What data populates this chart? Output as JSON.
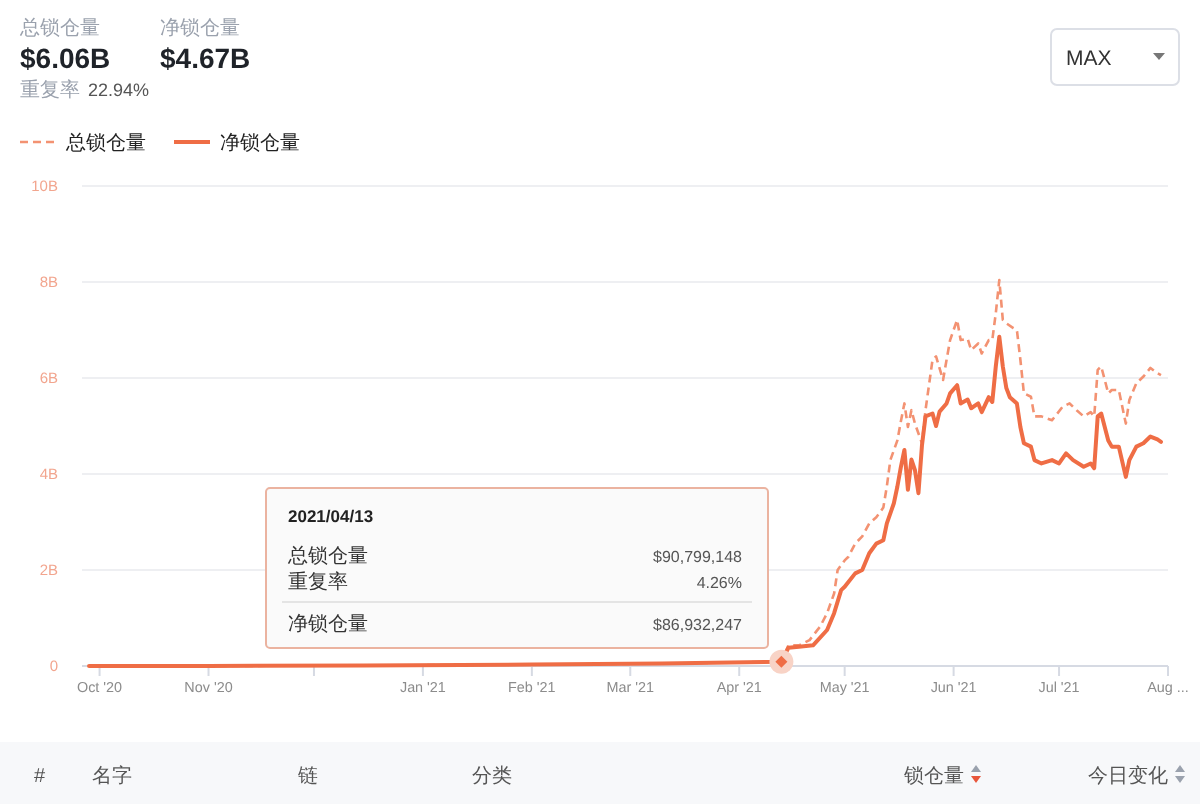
{
  "chart_data": {
    "type": "line",
    "series": [
      {
        "name": "总锁仓量",
        "color": "#f39272",
        "line_style": "dashed",
        "x": [
          "2020-09-28",
          "2020-11-01",
          "2020-12-15",
          "2021-02-01",
          "2021-03-10",
          "2021-04-13",
          "2021-04-15",
          "2021-04-18",
          "2021-04-21",
          "2021-04-24",
          "2021-04-26",
          "2021-04-28",
          "2021-04-29",
          "2021-05-01",
          "2021-05-02",
          "2021-05-04",
          "2021-05-06",
          "2021-05-08",
          "2021-05-10",
          "2021-05-12",
          "2021-05-13",
          "2021-05-14",
          "2021-05-16",
          "2021-05-17",
          "2021-05-18",
          "2021-05-19",
          "2021-05-20",
          "2021-05-21",
          "2021-05-23",
          "2021-05-24",
          "2021-05-26",
          "2021-05-27",
          "2021-05-29",
          "2021-05-30",
          "2021-05-31",
          "2021-06-02",
          "2021-06-03",
          "2021-06-05",
          "2021-06-06",
          "2021-06-08",
          "2021-06-09",
          "2021-06-11",
          "2021-06-12",
          "2021-06-13",
          "2021-06-14",
          "2021-06-15",
          "2021-06-16",
          "2021-06-18",
          "2021-06-19",
          "2021-06-20",
          "2021-06-21",
          "2021-06-23",
          "2021-06-24",
          "2021-06-26",
          "2021-06-29",
          "2021-07-02",
          "2021-07-04",
          "2021-07-06",
          "2021-07-08",
          "2021-07-10",
          "2021-07-11",
          "2021-07-12",
          "2021-07-13",
          "2021-07-15",
          "2021-07-16",
          "2021-07-18",
          "2021-07-20",
          "2021-07-21",
          "2021-07-23",
          "2021-07-25",
          "2021-07-27",
          "2021-07-29",
          "2021-07-30"
        ],
        "values": [
          0,
          0,
          0.01,
          0.03,
          0.05,
          0.09,
          0.43,
          0.43,
          0.54,
          0.82,
          1.1,
          1.51,
          2.0,
          2.2,
          2.27,
          2.55,
          2.7,
          2.97,
          3.1,
          3.3,
          3.74,
          4.29,
          4.7,
          5.1,
          5.47,
          4.98,
          5.33,
          5.05,
          4.64,
          5.33,
          6.38,
          6.45,
          5.96,
          6.38,
          6.79,
          7.21,
          6.79,
          6.82,
          6.58,
          6.72,
          6.51,
          6.79,
          6.79,
          7.35,
          8.04,
          7.21,
          7.14,
          7.04,
          7.0,
          6.38,
          5.68,
          5.61,
          5.2,
          5.2,
          5.12,
          5.4,
          5.47,
          5.33,
          5.2,
          5.29,
          5.2,
          6.17,
          6.24,
          5.68,
          5.75,
          5.75,
          5.05,
          5.54,
          5.89,
          6.03,
          6.21,
          6.1,
          6.06
        ]
      },
      {
        "name": "净锁仓量",
        "color": "#ef6d45",
        "line_style": "solid",
        "x": [
          "2020-09-28",
          "2020-11-01",
          "2020-12-15",
          "2021-02-01",
          "2021-03-10",
          "2021-04-13",
          "2021-04-15",
          "2021-04-18",
          "2021-04-22",
          "2021-04-26",
          "2021-04-28",
          "2021-04-30",
          "2021-05-01",
          "2021-05-04",
          "2021-05-06",
          "2021-05-08",
          "2021-05-10",
          "2021-05-12",
          "2021-05-13",
          "2021-05-15",
          "2021-05-16",
          "2021-05-17",
          "2021-05-18",
          "2021-05-19",
          "2021-05-20",
          "2021-05-21",
          "2021-05-22",
          "2021-05-23",
          "2021-05-24",
          "2021-05-26",
          "2021-05-27",
          "2021-05-28",
          "2021-05-30",
          "2021-05-31",
          "2021-06-02",
          "2021-06-03",
          "2021-06-05",
          "2021-06-06",
          "2021-06-08",
          "2021-06-09",
          "2021-06-11",
          "2021-06-12",
          "2021-06-13",
          "2021-06-14",
          "2021-06-15",
          "2021-06-16",
          "2021-06-17",
          "2021-06-19",
          "2021-06-20",
          "2021-06-21",
          "2021-06-23",
          "2021-06-24",
          "2021-06-26",
          "2021-06-29",
          "2021-07-01",
          "2021-07-03",
          "2021-07-05",
          "2021-07-08",
          "2021-07-10",
          "2021-07-11",
          "2021-07-12",
          "2021-07-13",
          "2021-07-15",
          "2021-07-16",
          "2021-07-18",
          "2021-07-20",
          "2021-07-21",
          "2021-07-23",
          "2021-07-25",
          "2021-07-27",
          "2021-07-29",
          "2021-07-30"
        ],
        "values": [
          0,
          0,
          0.01,
          0.03,
          0.05,
          0.09,
          0.38,
          0.4,
          0.43,
          0.75,
          1.1,
          1.58,
          1.65,
          1.93,
          2.0,
          2.35,
          2.55,
          2.62,
          2.97,
          3.39,
          3.74,
          4.15,
          4.5,
          3.67,
          4.3,
          4.08,
          3.6,
          4.6,
          5.2,
          5.26,
          5.0,
          5.3,
          5.47,
          5.68,
          5.85,
          5.47,
          5.55,
          5.37,
          5.47,
          5.29,
          5.6,
          5.5,
          6.24,
          6.86,
          6.24,
          5.79,
          5.6,
          5.47,
          4.98,
          4.64,
          4.57,
          4.29,
          4.22,
          4.29,
          4.22,
          4.43,
          4.29,
          4.15,
          4.22,
          4.12,
          5.2,
          5.26,
          4.7,
          4.57,
          4.57,
          3.94,
          4.29,
          4.57,
          4.64,
          4.78,
          4.72,
          4.67
        ]
      },
      {
        "type": "scatter",
        "color": "#ef6d45",
        "marker": "diamond",
        "x": [
          "2021-04-13"
        ],
        "values": [
          0.09
        ]
      }
    ],
    "xlim": [
      "2020-09-26",
      "2021-08-01"
    ],
    "xticks": [
      {
        "value": "2020-10-01",
        "label": "Oct '20"
      },
      {
        "value": "2020-11-01",
        "label": "Nov '20"
      },
      {
        "value": "2020-12-01",
        "label": null
      },
      {
        "value": "2021-01-01",
        "label": "Jan '21"
      },
      {
        "value": "2021-02-01",
        "label": "Feb '21"
      },
      {
        "value": "2021-03-01",
        "label": "Mar '21"
      },
      {
        "value": "2021-04-01",
        "label": "Apr '21"
      },
      {
        "value": "2021-05-01",
        "label": "May '21"
      },
      {
        "value": "2021-06-01",
        "label": "Jun '21"
      },
      {
        "value": "2021-07-01",
        "label": "Jul '21"
      },
      {
        "value": "2021-08-01",
        "label": "Aug ..."
      }
    ],
    "ylim": [
      0,
      10
    ],
    "yticks": [
      0,
      {
        "value": 2,
        "label": "2B"
      },
      {
        "value": 4,
        "label": "4B"
      },
      {
        "value": 6,
        "label": "6B"
      },
      {
        "value": 8,
        "label": "8B"
      },
      {
        "value": 10,
        "label": "10B"
      }
    ],
    "grid": "y",
    "legend": "top left",
    "annotations": [
      "总锁仓量",
      "$6.06B",
      "净锁仓量",
      "$4.67B",
      "重复率",
      "22.94%",
      "MAX",
      "#",
      "名字",
      "链",
      "分类",
      "锁仓量",
      "今日变化",
      "2021/04/13",
      "总锁仓量",
      "$90,799,148",
      "重复率",
      "4.26%",
      "净锁仓量",
      "$86,932,247"
    ]
  }
}
